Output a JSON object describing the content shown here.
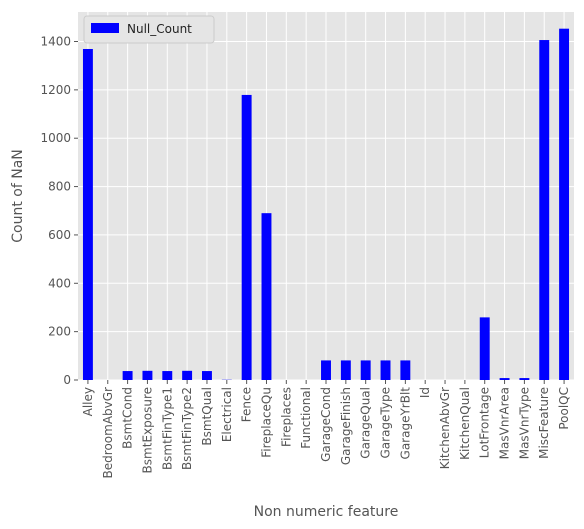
{
  "chart_data": {
    "type": "bar",
    "title": "",
    "xlabel": "Non numeric feature",
    "ylabel": "Count of NaN",
    "ylim": [
      0,
      1522
    ],
    "yticks": [
      0,
      200,
      400,
      600,
      800,
      1000,
      1200,
      1400
    ],
    "grid": true,
    "legend_position": "top-left",
    "categories": [
      "Alley",
      "BedroomAbvGr",
      "BsmtCond",
      "BsmtExposure",
      "BsmtFinType1",
      "BsmtFinType2",
      "BsmtQual",
      "Electrical",
      "Fence",
      "FireplaceQu",
      "Fireplaces",
      "Functional",
      "GarageCond",
      "GarageFinish",
      "GarageQual",
      "GarageType",
      "GarageYrBlt",
      "Id",
      "KitchenAbvGr",
      "KitchenQual",
      "LotFrontage",
      "MasVnrArea",
      "MasVnrType",
      "MiscFeature",
      "PoolQC"
    ],
    "series": [
      {
        "name": "Null_Count",
        "color": "#0000ff",
        "values": [
          1369,
          0,
          37,
          38,
          37,
          38,
          37,
          1,
          1179,
          690,
          0,
          0,
          81,
          81,
          81,
          81,
          81,
          0,
          0,
          0,
          259,
          8,
          8,
          1406,
          1453
        ]
      }
    ]
  },
  "style": {
    "plot_bg": "#e5e5e5",
    "grid_color": "#ffffff",
    "text_color": "#555555"
  }
}
